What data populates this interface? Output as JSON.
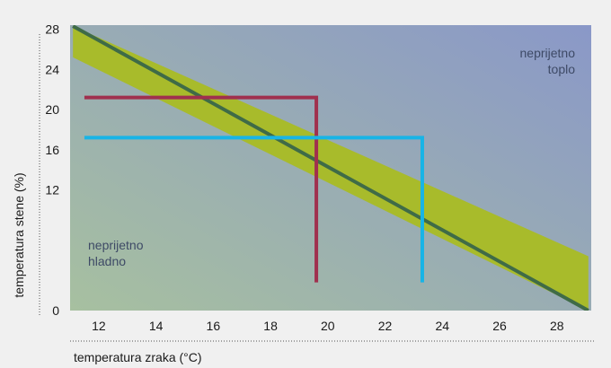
{
  "chart_data": {
    "type": "line",
    "xlabel": "temperatura zraka (°C)",
    "ylabel": "temperatura stene (%)",
    "xlim": [
      11,
      29.2
    ],
    "ylim": [
      0,
      28.4
    ],
    "x_ticks": [
      12,
      14,
      16,
      18,
      20,
      22,
      24,
      26,
      28
    ],
    "y_ticks": [
      0,
      12,
      16,
      20,
      24,
      28
    ],
    "comfort_line": {
      "points": [
        [
          11.1,
          28.3
        ],
        [
          29.1,
          0
        ]
      ],
      "color": "#3f6b47"
    },
    "comfort_band": {
      "upper": [
        [
          11.1,
          28.3
        ],
        [
          29.1,
          5.4
        ]
      ],
      "lower": [
        [
          11.1,
          25.2
        ],
        [
          29.1,
          0
        ]
      ],
      "color": "#a8bb2b"
    },
    "series": [
      {
        "color": "#a0304e",
        "points": [
          [
            11.5,
            21.2
          ],
          [
            19.6,
            21.2
          ],
          [
            19.6,
            2.8
          ]
        ]
      },
      {
        "color": "#18b4e6",
        "points": [
          [
            11.5,
            17.2
          ],
          [
            23.3,
            17.2
          ],
          [
            23.3,
            2.8
          ]
        ]
      }
    ],
    "zones": [
      {
        "lines": [
          "neprijetno",
          "toplo"
        ],
        "anchor": "end",
        "color": "#8a98c8"
      },
      {
        "lines": [
          "neprijetno",
          "hladno"
        ],
        "anchor": "start",
        "color": "#a7c0a0"
      }
    ]
  }
}
